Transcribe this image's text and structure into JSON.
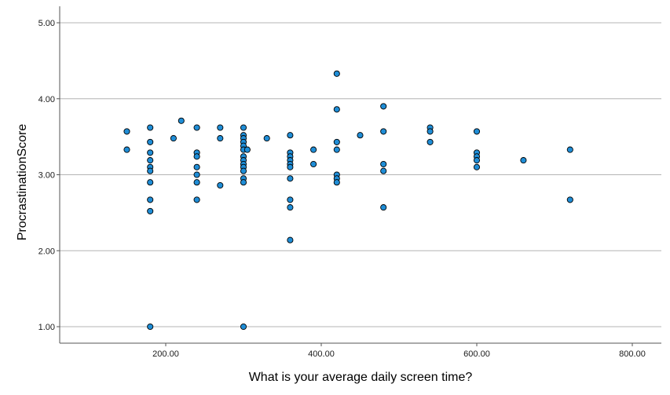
{
  "chart_data": {
    "type": "scatter",
    "xlabel": "What is your average daily screen time?",
    "ylabel": "ProcrastinationScore",
    "xlim": [
      70,
      840
    ],
    "ylim": [
      0.8,
      5.2
    ],
    "x_ticks": [
      "200.00",
      "400.00",
      "600.00",
      "800.00"
    ],
    "y_ticks": [
      "1.00",
      "2.00",
      "3.00",
      "4.00",
      "5.00"
    ],
    "grid": "horizontal",
    "point_color": "#1f8dd6",
    "point_edge_color": "#000000",
    "points": [
      [
        150,
        3.57
      ],
      [
        150,
        3.33
      ],
      [
        180,
        3.62
      ],
      [
        180,
        3.43
      ],
      [
        180,
        3.29
      ],
      [
        180,
        3.19
      ],
      [
        180,
        3.1
      ],
      [
        180,
        3.05
      ],
      [
        180,
        2.9
      ],
      [
        180,
        2.67
      ],
      [
        180,
        2.52
      ],
      [
        180,
        1.0
      ],
      [
        210,
        3.48
      ],
      [
        220,
        3.71
      ],
      [
        240,
        3.62
      ],
      [
        240,
        3.29
      ],
      [
        240,
        3.24
      ],
      [
        240,
        3.1
      ],
      [
        240,
        3.0
      ],
      [
        240,
        2.9
      ],
      [
        240,
        2.67
      ],
      [
        270,
        3.62
      ],
      [
        270,
        3.48
      ],
      [
        270,
        2.86
      ],
      [
        300,
        3.62
      ],
      [
        300,
        3.52
      ],
      [
        300,
        3.48
      ],
      [
        300,
        3.43
      ],
      [
        300,
        3.38
      ],
      [
        300,
        3.33
      ],
      [
        300,
        3.24
      ],
      [
        300,
        3.19
      ],
      [
        300,
        3.14
      ],
      [
        300,
        3.1
      ],
      [
        300,
        3.05
      ],
      [
        300,
        2.95
      ],
      [
        300,
        2.9
      ],
      [
        300,
        1.0
      ],
      [
        305,
        3.33
      ],
      [
        330,
        3.48
      ],
      [
        360,
        3.52
      ],
      [
        360,
        3.29
      ],
      [
        360,
        3.24
      ],
      [
        360,
        3.19
      ],
      [
        360,
        3.14
      ],
      [
        360,
        3.1
      ],
      [
        360,
        2.95
      ],
      [
        360,
        2.67
      ],
      [
        360,
        2.57
      ],
      [
        360,
        2.14
      ],
      [
        390,
        3.33
      ],
      [
        390,
        3.14
      ],
      [
        420,
        4.33
      ],
      [
        420,
        3.86
      ],
      [
        420,
        3.43
      ],
      [
        420,
        3.33
      ],
      [
        420,
        3.0
      ],
      [
        420,
        2.95
      ],
      [
        420,
        2.9
      ],
      [
        450,
        3.52
      ],
      [
        480,
        3.9
      ],
      [
        480,
        3.57
      ],
      [
        480,
        3.14
      ],
      [
        480,
        3.05
      ],
      [
        480,
        2.57
      ],
      [
        540,
        3.62
      ],
      [
        540,
        3.57
      ],
      [
        540,
        3.43
      ],
      [
        600,
        3.57
      ],
      [
        600,
        3.29
      ],
      [
        600,
        3.24
      ],
      [
        600,
        3.19
      ],
      [
        600,
        3.1
      ],
      [
        660,
        3.19
      ],
      [
        720,
        3.33
      ],
      [
        720,
        2.67
      ]
    ]
  }
}
